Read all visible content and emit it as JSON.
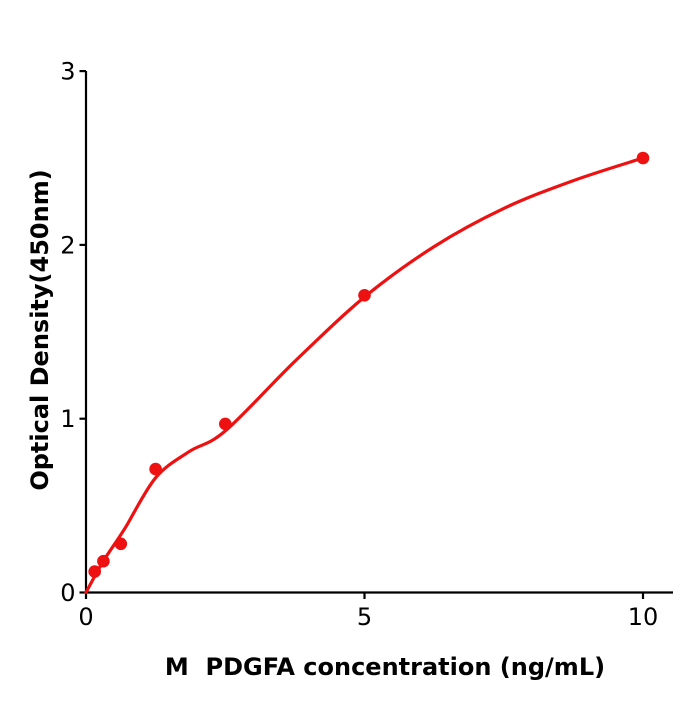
{
  "figure": {
    "background": "#ffffff",
    "axis_color": "#000000",
    "accent_color": "#ee1111"
  },
  "chart_data": {
    "type": "scatter",
    "title": "",
    "xlabel": "M  PDGFA concentration (ng/mL)",
    "ylabel": "Optical Density(450nm)",
    "xlim": [
      0,
      10.54
    ],
    "ylim": [
      0,
      3
    ],
    "x_ticks": [
      0,
      5,
      10
    ],
    "y_ticks": [
      0,
      1,
      2,
      3
    ],
    "grid": false,
    "legend": false,
    "marker_color": "#ee1111",
    "curve_color": "#ee1111",
    "points": [
      {
        "x": 0.156,
        "y": 0.12
      },
      {
        "x": 0.3125,
        "y": 0.18
      },
      {
        "x": 0.625,
        "y": 0.28
      },
      {
        "x": 1.25,
        "y": 0.71
      },
      {
        "x": 2.5,
        "y": 0.97
      },
      {
        "x": 5,
        "y": 1.71
      },
      {
        "x": 10,
        "y": 2.5
      }
    ],
    "fit_curve": [
      [
        0,
        0
      ],
      [
        0.15,
        0.09
      ],
      [
        0.35,
        0.2
      ],
      [
        0.7,
        0.37
      ],
      [
        1.25,
        0.66
      ],
      [
        1.85,
        0.81
      ],
      [
        2.5,
        0.93
      ],
      [
        3.75,
        1.33
      ],
      [
        5,
        1.7
      ],
      [
        6.25,
        1.99
      ],
      [
        7.5,
        2.21
      ],
      [
        8.75,
        2.37
      ],
      [
        10,
        2.5
      ]
    ]
  }
}
